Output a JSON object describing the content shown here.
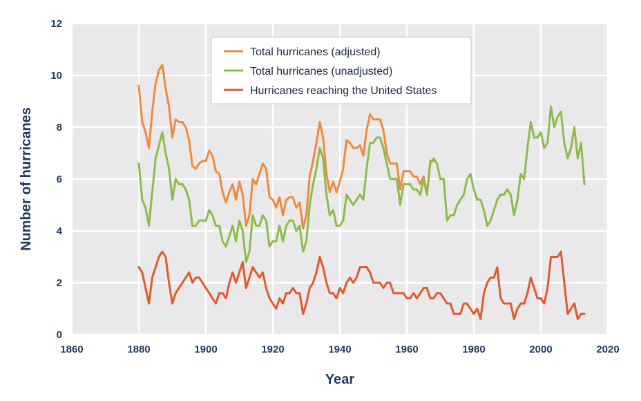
{
  "chart_data": {
    "type": "line",
    "xlabel": "Year",
    "ylabel": "Number of hurricanes",
    "xlim": [
      1860,
      2020
    ],
    "ylim": [
      0,
      12
    ],
    "x_ticks": [
      1860,
      1880,
      1900,
      1920,
      1940,
      1960,
      1980,
      2000,
      2020
    ],
    "y_ticks": [
      0,
      2,
      4,
      6,
      8,
      10,
      12
    ],
    "grid": true,
    "legend_position": "top-center",
    "background_color": "#e9e9ec",
    "grid_color": "#ffffff",
    "series": [
      {
        "name": "Total hurricanes (adjusted)",
        "color": "#f08a3a",
        "x": [
          1880,
          1881,
          1882,
          1883,
          1884,
          1885,
          1886,
          1887,
          1888,
          1889,
          1890,
          1891,
          1892,
          1893,
          1894,
          1895,
          1896,
          1897,
          1898,
          1899,
          1900,
          1901,
          1902,
          1903,
          1904,
          1905,
          1906,
          1907,
          1908,
          1909,
          1910,
          1911,
          1912,
          1913,
          1914,
          1915,
          1916,
          1917,
          1918,
          1919,
          1920,
          1921,
          1922,
          1923,
          1924,
          1925,
          1926,
          1927,
          1928,
          1929,
          1930,
          1931,
          1932,
          1933,
          1934,
          1935,
          1936,
          1937,
          1938,
          1939,
          1940,
          1941,
          1942,
          1943,
          1944,
          1945,
          1946,
          1947,
          1948,
          1949,
          1950,
          1951,
          1952,
          1953,
          1954,
          1955,
          1956,
          1957,
          1958,
          1959,
          1960,
          1961,
          1962,
          1963,
          1964,
          1965,
          1966,
          1967,
          1968
        ],
        "values": [
          9.6,
          8.2,
          7.8,
          7.2,
          8.6,
          9.7,
          10.2,
          10.4,
          9.5,
          8.8,
          7.6,
          8.3,
          8.2,
          8.2,
          8.0,
          7.5,
          6.5,
          6.4,
          6.6,
          6.7,
          6.7,
          7.1,
          6.9,
          6.3,
          6.2,
          5.5,
          5.1,
          5.5,
          5.8,
          5.2,
          5.9,
          5.4,
          4.2,
          4.6,
          6.0,
          5.8,
          6.2,
          6.6,
          6.4,
          5.3,
          5.2,
          4.9,
          5.3,
          4.6,
          5.2,
          5.3,
          5.3,
          4.9,
          5.1,
          4.1,
          4.6,
          6.1,
          6.7,
          7.4,
          8.2,
          7.6,
          6.2,
          5.5,
          5.9,
          5.5,
          5.9,
          6.4,
          7.5,
          7.4,
          7.2,
          7.2,
          7.3,
          6.9,
          7.9,
          8.5,
          8.3,
          8.3,
          8.3,
          7.9,
          7.0,
          6.6,
          6.6,
          6.6,
          5.6,
          6.3,
          6.3,
          6.3,
          6.1,
          6.1,
          5.8,
          6.1,
          5.4,
          6.7,
          6.7
        ]
      },
      {
        "name": "Total hurricanes (unadjusted)",
        "color": "#8cbb4c",
        "x": [
          1880,
          1881,
          1882,
          1883,
          1884,
          1885,
          1886,
          1887,
          1888,
          1889,
          1890,
          1891,
          1892,
          1893,
          1894,
          1895,
          1896,
          1897,
          1898,
          1899,
          1900,
          1901,
          1902,
          1903,
          1904,
          1905,
          1906,
          1907,
          1908,
          1909,
          1910,
          1911,
          1912,
          1913,
          1914,
          1915,
          1916,
          1917,
          1918,
          1919,
          1920,
          1921,
          1922,
          1923,
          1924,
          1925,
          1926,
          1927,
          1928,
          1929,
          1930,
          1931,
          1932,
          1933,
          1934,
          1935,
          1936,
          1937,
          1938,
          1939,
          1940,
          1941,
          1942,
          1943,
          1944,
          1945,
          1946,
          1947,
          1948,
          1949,
          1950,
          1951,
          1952,
          1953,
          1954,
          1955,
          1956,
          1957,
          1958,
          1959,
          1960,
          1961,
          1962,
          1963,
          1964,
          1965,
          1966,
          1967,
          1968,
          1969,
          1970,
          1971,
          1972,
          1973,
          1974,
          1975,
          1976,
          1977,
          1978,
          1979,
          1980,
          1981,
          1982,
          1983,
          1984,
          1985,
          1986,
          1987,
          1988,
          1989,
          1990,
          1991,
          1992,
          1993,
          1994,
          1995,
          1996,
          1997,
          1998,
          1999,
          2000,
          2001,
          2002,
          2003,
          2004,
          2005,
          2006,
          2007,
          2008,
          2009,
          2010,
          2011,
          2012,
          2013
        ],
        "values": [
          6.6,
          5.2,
          4.9,
          4.2,
          5.5,
          6.8,
          7.3,
          7.8,
          7.0,
          6.4,
          5.2,
          6.0,
          5.8,
          5.8,
          5.6,
          5.2,
          4.2,
          4.2,
          4.4,
          4.4,
          4.4,
          4.8,
          4.6,
          4.2,
          4.2,
          3.6,
          3.4,
          3.8,
          4.2,
          3.6,
          4.4,
          4.0,
          2.8,
          3.2,
          4.6,
          4.2,
          4.2,
          4.6,
          4.4,
          3.4,
          3.6,
          3.6,
          4.2,
          3.6,
          4.2,
          4.4,
          4.4,
          4.0,
          4.2,
          3.2,
          3.6,
          5.0,
          5.8,
          6.4,
          7.2,
          6.8,
          5.4,
          4.6,
          4.8,
          4.2,
          4.2,
          4.4,
          5.4,
          5.2,
          5.0,
          5.2,
          5.4,
          5.2,
          6.4,
          7.4,
          7.4,
          7.6,
          7.6,
          7.2,
          6.6,
          6.0,
          6.0,
          6.0,
          5.0,
          5.8,
          5.8,
          5.8,
          5.6,
          5.6,
          5.4,
          6.0,
          5.4,
          6.6,
          6.8,
          6.6,
          6.0,
          6.0,
          4.4,
          4.6,
          4.6,
          5.0,
          5.2,
          5.4,
          6.0,
          6.2,
          5.6,
          5.2,
          5.2,
          4.8,
          4.2,
          4.4,
          4.8,
          5.2,
          5.4,
          5.4,
          5.6,
          5.4,
          4.6,
          5.2,
          6.2,
          6.0,
          7.2,
          8.2,
          7.6,
          7.6,
          7.8,
          7.2,
          7.4,
          8.8,
          8.0,
          8.4,
          8.6,
          7.4,
          6.8,
          7.2,
          8.0,
          6.8,
          7.4,
          5.8
        ]
      },
      {
        "name": "Hurricanes reaching the United States",
        "color": "#e05a2c",
        "x": [
          1880,
          1881,
          1882,
          1883,
          1884,
          1885,
          1886,
          1887,
          1888,
          1889,
          1890,
          1891,
          1892,
          1893,
          1894,
          1895,
          1896,
          1897,
          1898,
          1899,
          1900,
          1901,
          1902,
          1903,
          1904,
          1905,
          1906,
          1907,
          1908,
          1909,
          1910,
          1911,
          1912,
          1913,
          1914,
          1915,
          1916,
          1917,
          1918,
          1919,
          1920,
          1921,
          1922,
          1923,
          1924,
          1925,
          1926,
          1927,
          1928,
          1929,
          1930,
          1931,
          1932,
          1933,
          1934,
          1935,
          1936,
          1937,
          1938,
          1939,
          1940,
          1941,
          1942,
          1943,
          1944,
          1945,
          1946,
          1947,
          1948,
          1949,
          1950,
          1951,
          1952,
          1953,
          1954,
          1955,
          1956,
          1957,
          1958,
          1959,
          1960,
          1961,
          1962,
          1963,
          1964,
          1965,
          1966,
          1967,
          1968,
          1969,
          1970,
          1971,
          1972,
          1973,
          1974,
          1975,
          1976,
          1977,
          1978,
          1979,
          1980,
          1981,
          1982,
          1983,
          1984,
          1985,
          1986,
          1987,
          1988,
          1989,
          1990,
          1991,
          1992,
          1993,
          1994,
          1995,
          1996,
          1997,
          1998,
          1999,
          2000,
          2001,
          2002,
          2003,
          2004,
          2005,
          2006,
          2007,
          2008,
          2009,
          2010,
          2011,
          2012,
          2013
        ],
        "values": [
          2.6,
          2.4,
          1.8,
          1.2,
          2.2,
          2.6,
          3.0,
          3.2,
          3.0,
          2.0,
          1.2,
          1.6,
          1.8,
          2.0,
          2.2,
          2.4,
          2.0,
          2.2,
          2.2,
          2.0,
          1.8,
          1.6,
          1.4,
          1.2,
          1.6,
          1.6,
          1.4,
          2.0,
          2.4,
          2.0,
          2.4,
          2.8,
          1.8,
          2.2,
          2.6,
          2.4,
          2.2,
          2.4,
          1.8,
          1.4,
          1.2,
          1.0,
          1.4,
          1.2,
          1.6,
          1.6,
          1.8,
          1.6,
          1.6,
          0.8,
          1.2,
          1.8,
          2.0,
          2.4,
          3.0,
          2.6,
          2.0,
          1.6,
          1.6,
          1.4,
          1.8,
          1.6,
          2.0,
          2.2,
          2.0,
          2.2,
          2.6,
          2.6,
          2.6,
          2.4,
          2.0,
          2.0,
          2.0,
          1.8,
          2.0,
          2.0,
          1.6,
          1.6,
          1.6,
          1.6,
          1.4,
          1.4,
          1.6,
          1.4,
          1.6,
          1.8,
          1.8,
          1.4,
          1.4,
          1.6,
          1.6,
          1.4,
          1.2,
          1.2,
          0.8,
          0.8,
          0.8,
          1.2,
          1.2,
          1.0,
          0.8,
          1.0,
          0.6,
          1.6,
          2.0,
          2.2,
          2.2,
          2.6,
          1.4,
          1.2,
          1.2,
          1.2,
          0.6,
          1.0,
          1.2,
          1.2,
          1.6,
          2.2,
          1.8,
          1.4,
          1.4,
          1.2,
          1.8,
          3.0,
          3.0,
          3.0,
          3.2,
          2.0,
          0.8,
          1.0,
          1.2,
          0.6,
          0.8,
          0.8
        ]
      }
    ]
  }
}
